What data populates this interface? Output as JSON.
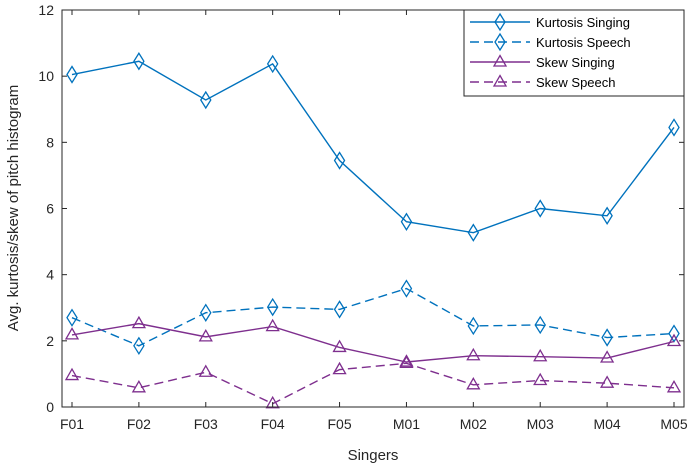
{
  "chart_data": {
    "type": "line",
    "title": "",
    "xlabel": "Singers",
    "ylabel": "Avg. kurtosis/skew of pitch histogram",
    "categories": [
      "F01",
      "F02",
      "F03",
      "F04",
      "F05",
      "M01",
      "M02",
      "M03",
      "M04",
      "M05"
    ],
    "ylim": [
      0,
      12
    ],
    "yticks": [
      0,
      2,
      4,
      6,
      8,
      10,
      12
    ],
    "grid": false,
    "legend_position": "top-right",
    "series": [
      {
        "name": "Kurtosis Singing",
        "values": [
          10.05,
          10.45,
          9.28,
          10.37,
          7.45,
          5.6,
          5.27,
          6.0,
          5.78,
          8.45
        ],
        "color": "#0072BD",
        "dash": "solid",
        "marker": "diamond"
      },
      {
        "name": "Kurtosis Speech",
        "values": [
          2.7,
          1.85,
          2.85,
          3.02,
          2.95,
          3.58,
          2.45,
          2.48,
          2.1,
          2.22
        ],
        "color": "#0072BD",
        "dash": "dashed",
        "marker": "diamond"
      },
      {
        "name": "Skew Singing",
        "values": [
          2.18,
          2.52,
          2.12,
          2.43,
          1.8,
          1.36,
          1.55,
          1.52,
          1.48,
          1.98
        ],
        "color": "#7E2F8E",
        "dash": "solid",
        "marker": "triangle"
      },
      {
        "name": "Skew Speech",
        "values": [
          0.95,
          0.58,
          1.05,
          0.1,
          1.13,
          1.32,
          0.67,
          0.8,
          0.72,
          0.58
        ],
        "color": "#7E2F8E",
        "dash": "dashed",
        "marker": "triangle"
      }
    ]
  }
}
